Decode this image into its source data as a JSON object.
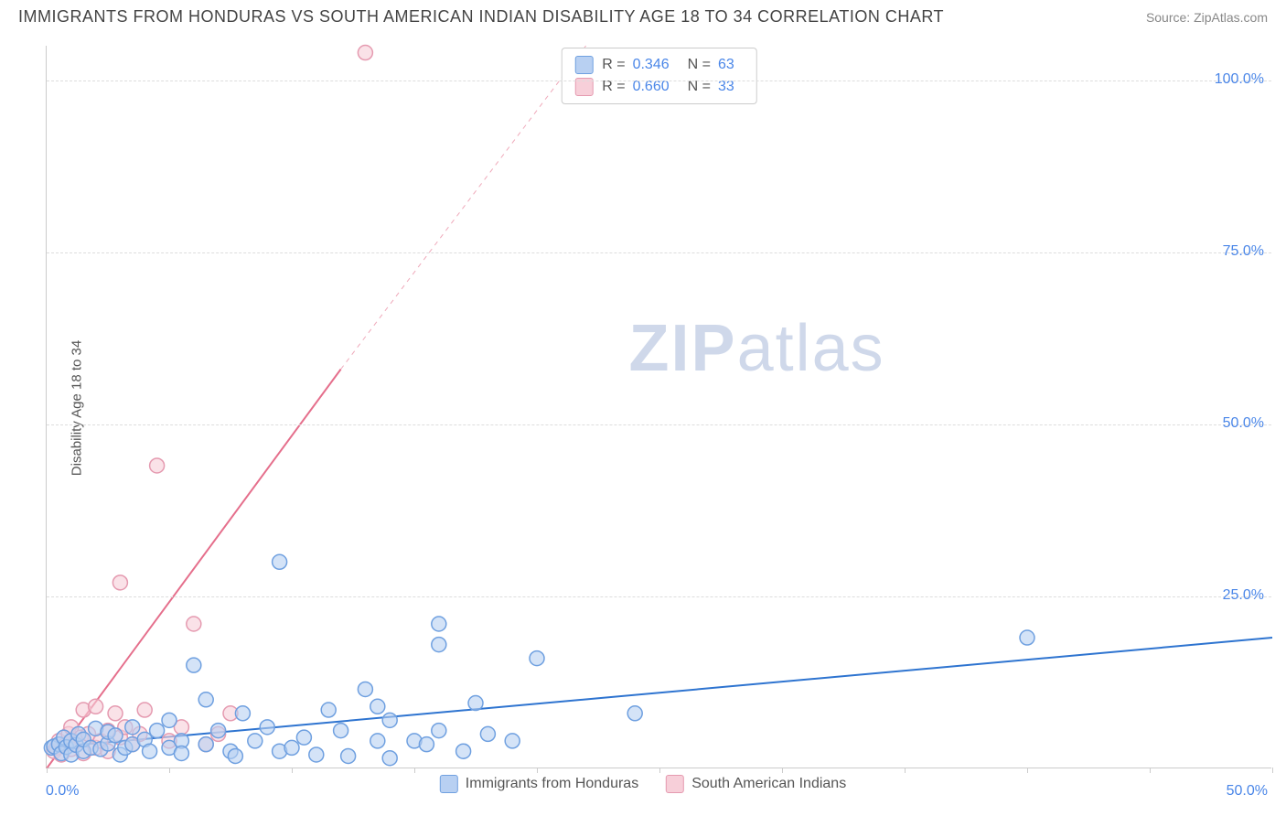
{
  "header": {
    "title": "IMMIGRANTS FROM HONDURAS VS SOUTH AMERICAN INDIAN DISABILITY AGE 18 TO 34 CORRELATION CHART",
    "source": "Source: ZipAtlas.com"
  },
  "chart": {
    "type": "scatter",
    "ylabel": "Disability Age 18 to 34",
    "xlim": [
      0,
      50
    ],
    "ylim": [
      0,
      105
    ],
    "ytick_positions": [
      25,
      50,
      75,
      100
    ],
    "ytick_labels": [
      "25.0%",
      "50.0%",
      "75.0%",
      "100.0%"
    ],
    "xtick_positions": [
      0,
      5,
      10,
      15,
      20,
      25,
      30,
      35,
      40,
      45,
      50
    ],
    "xaxis_min_label": "0.0%",
    "xaxis_max_label": "50.0%",
    "grid_color": "#dddddd",
    "axis_color": "#cccccc",
    "background_color": "#ffffff",
    "marker_radius": 8,
    "marker_stroke_width": 1.5,
    "line_width": 2,
    "watermark": "ZIPatlas"
  },
  "series": {
    "honduras": {
      "label": "Immigrants from Honduras",
      "R": "0.346",
      "N": "63",
      "fill": "#b8d0f2",
      "stroke": "#6fa0e0",
      "line_color": "#2e74d0",
      "trend": {
        "x1": 0,
        "y1": 3.0,
        "x2": 50,
        "y2": 19.0,
        "dashed_from": null
      },
      "points": [
        [
          0.2,
          3.0
        ],
        [
          0.3,
          3.2
        ],
        [
          0.5,
          3.5
        ],
        [
          0.6,
          2.2
        ],
        [
          0.7,
          4.5
        ],
        [
          0.8,
          3.1
        ],
        [
          1.0,
          2.0
        ],
        [
          1.0,
          4.0
        ],
        [
          1.2,
          3.4
        ],
        [
          1.3,
          5.0
        ],
        [
          1.5,
          2.5
        ],
        [
          1.5,
          4.2
        ],
        [
          1.8,
          3.0
        ],
        [
          2.0,
          5.8
        ],
        [
          2.2,
          2.8
        ],
        [
          2.5,
          3.6
        ],
        [
          2.5,
          5.3
        ],
        [
          2.8,
          4.8
        ],
        [
          3.0,
          2.0
        ],
        [
          3.2,
          3.0
        ],
        [
          3.5,
          6.0
        ],
        [
          3.5,
          3.5
        ],
        [
          4.0,
          4.2
        ],
        [
          4.2,
          2.5
        ],
        [
          4.5,
          5.5
        ],
        [
          5.0,
          3.0
        ],
        [
          5.0,
          7.0
        ],
        [
          5.5,
          4.0
        ],
        [
          5.5,
          2.2
        ],
        [
          6.0,
          15.0
        ],
        [
          6.5,
          10.0
        ],
        [
          6.5,
          3.5
        ],
        [
          7.0,
          5.5
        ],
        [
          7.5,
          2.5
        ],
        [
          7.7,
          1.8
        ],
        [
          8.0,
          8.0
        ],
        [
          8.5,
          4.0
        ],
        [
          9.0,
          6.0
        ],
        [
          9.5,
          2.5
        ],
        [
          9.5,
          30.0
        ],
        [
          10.0,
          3.0
        ],
        [
          10.5,
          4.5
        ],
        [
          11.0,
          2.0
        ],
        [
          11.5,
          8.5
        ],
        [
          12.0,
          5.5
        ],
        [
          12.3,
          1.8
        ],
        [
          13.0,
          11.5
        ],
        [
          13.5,
          4.0
        ],
        [
          13.5,
          9.0
        ],
        [
          14.0,
          1.5
        ],
        [
          14.0,
          7.0
        ],
        [
          15.0,
          4.0
        ],
        [
          15.5,
          3.5
        ],
        [
          16.0,
          21.0
        ],
        [
          16.0,
          18.0
        ],
        [
          16.0,
          5.5
        ],
        [
          17.0,
          2.5
        ],
        [
          17.5,
          9.5
        ],
        [
          18.0,
          5.0
        ],
        [
          19.0,
          4.0
        ],
        [
          20.0,
          16.0
        ],
        [
          24.0,
          8.0
        ],
        [
          40.0,
          19.0
        ]
      ]
    },
    "sai": {
      "label": "South American Indians",
      "R": "0.660",
      "N": "33",
      "fill": "#f7cfd9",
      "stroke": "#e59ab0",
      "line_color": "#e56f8c",
      "trend": {
        "x1": 0,
        "y1": 0.0,
        "x2_solid": 12,
        "y2_solid": 58,
        "x2": 22,
        "y2": 105
      },
      "points": [
        [
          0.3,
          2.5
        ],
        [
          0.4,
          3.0
        ],
        [
          0.5,
          4.0
        ],
        [
          0.6,
          2.0
        ],
        [
          0.8,
          3.5
        ],
        [
          0.9,
          5.0
        ],
        [
          1.0,
          2.8
        ],
        [
          1.0,
          6.0
        ],
        [
          1.2,
          3.5
        ],
        [
          1.4,
          4.5
        ],
        [
          1.5,
          2.2
        ],
        [
          1.5,
          8.5
        ],
        [
          1.7,
          5.0
        ],
        [
          2.0,
          3.0
        ],
        [
          2.0,
          9.0
        ],
        [
          2.2,
          4.0
        ],
        [
          2.5,
          5.5
        ],
        [
          2.5,
          2.5
        ],
        [
          2.8,
          8.0
        ],
        [
          3.0,
          27.0
        ],
        [
          3.0,
          4.5
        ],
        [
          3.2,
          6.0
        ],
        [
          3.5,
          3.5
        ],
        [
          3.8,
          5.0
        ],
        [
          4.0,
          8.5
        ],
        [
          4.5,
          44.0
        ],
        [
          5.0,
          4.0
        ],
        [
          5.5,
          6.0
        ],
        [
          6.0,
          21.0
        ],
        [
          6.5,
          3.5
        ],
        [
          7.0,
          5.0
        ],
        [
          7.5,
          8.0
        ],
        [
          13.0,
          104.0
        ]
      ]
    }
  },
  "legend_top": [
    {
      "swatch_fill": "#b8d0f2",
      "swatch_stroke": "#6fa0e0",
      "R_label": "R =",
      "R_val": "0.346",
      "N_label": "N =",
      "N_val": "63"
    },
    {
      "swatch_fill": "#f7cfd9",
      "swatch_stroke": "#e59ab0",
      "R_label": "R =",
      "R_val": "0.660",
      "N_label": "N =",
      "N_val": "33"
    }
  ],
  "legend_bottom": [
    {
      "swatch_fill": "#b8d0f2",
      "swatch_stroke": "#6fa0e0",
      "label": "Immigrants from Honduras"
    },
    {
      "swatch_fill": "#f7cfd9",
      "swatch_stroke": "#e59ab0",
      "label": "South American Indians"
    }
  ]
}
